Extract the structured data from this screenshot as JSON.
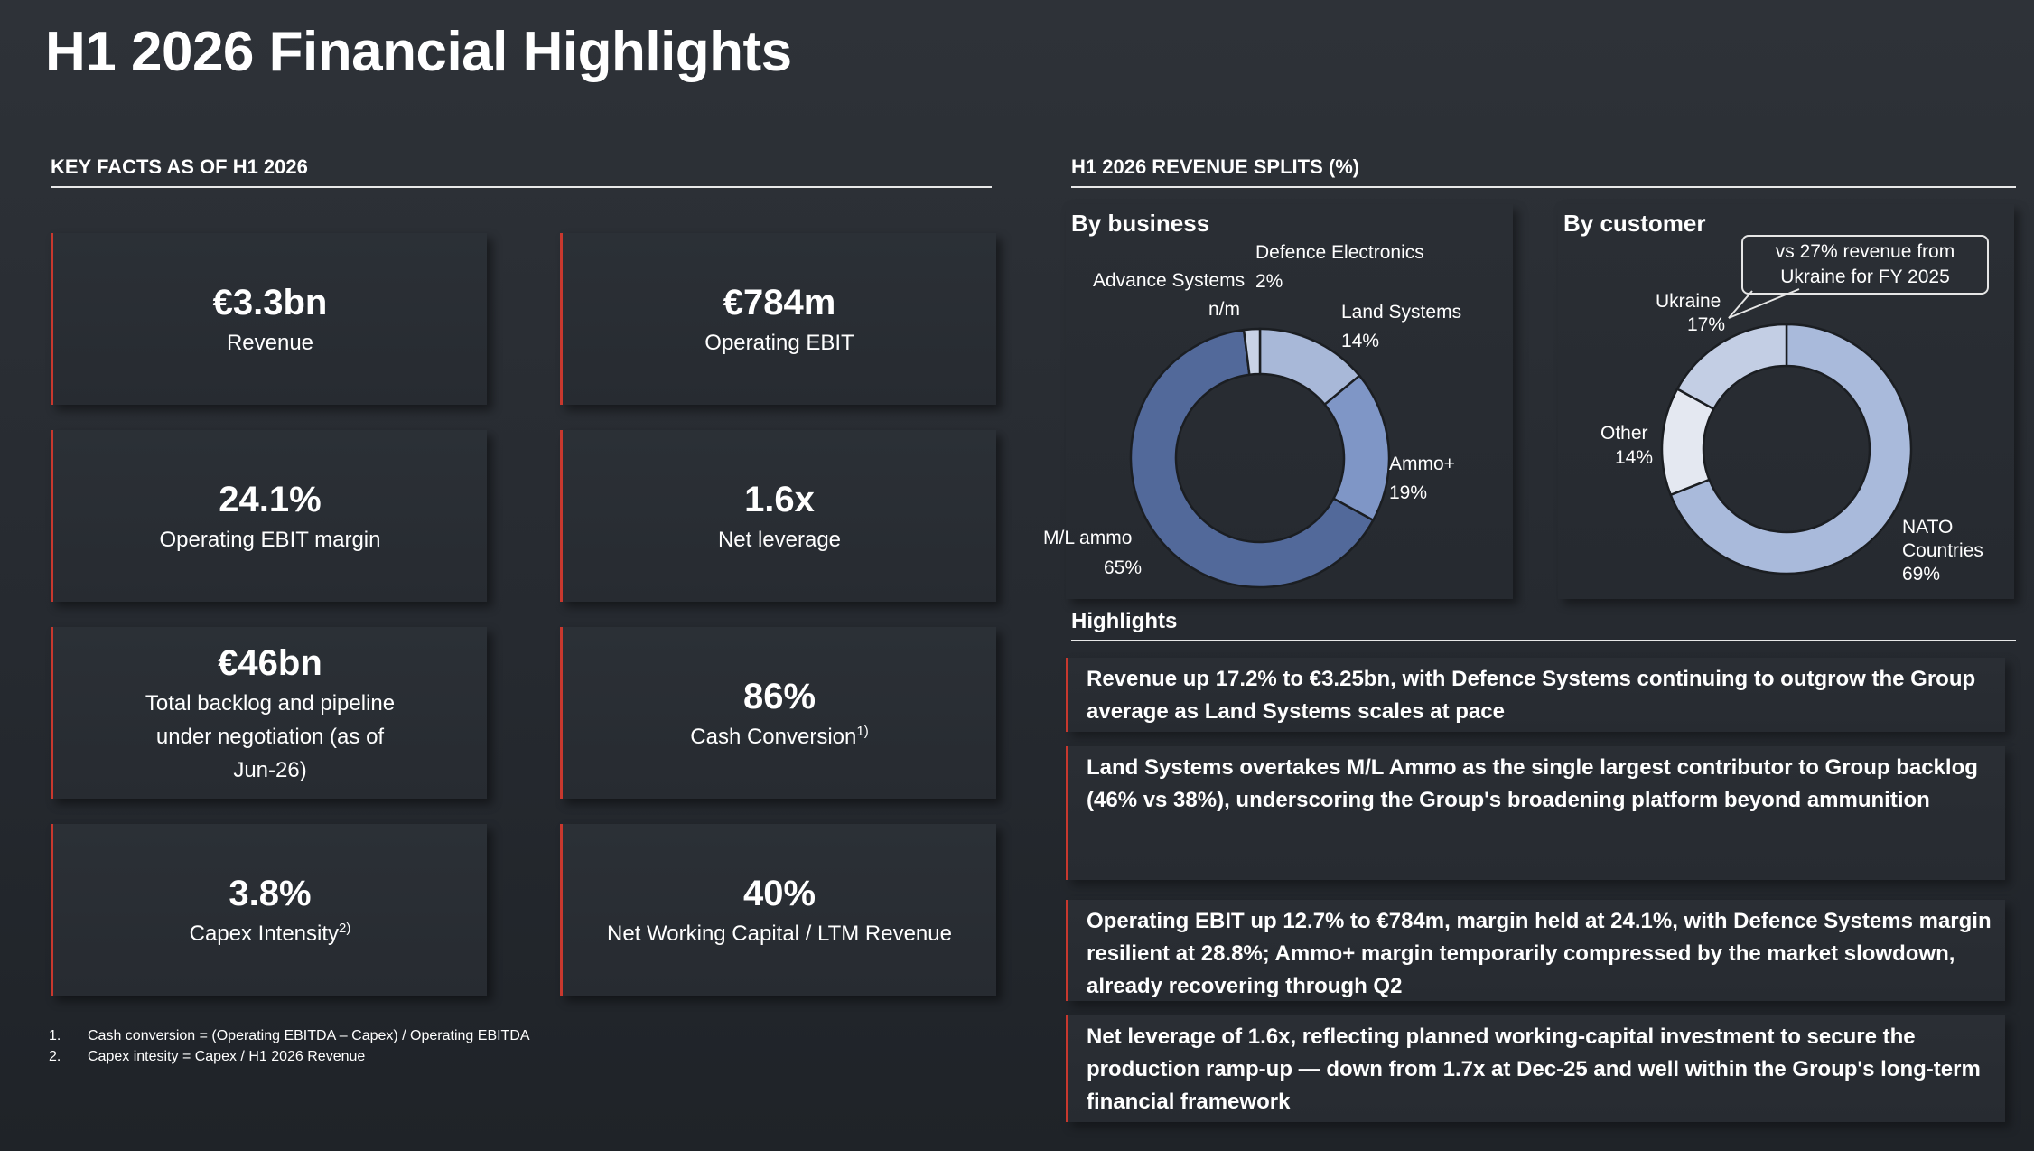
{
  "page": {
    "title": "H1 2026 Financial Highlights"
  },
  "key_facts": {
    "section_title": "KEY FACTS AS OF H1 2026",
    "cards": [
      {
        "value": "€3.3bn",
        "label": "Revenue"
      },
      {
        "value": "€784m",
        "label": "Operating EBIT"
      },
      {
        "value": "24.1%",
        "label": "Operating EBIT margin"
      },
      {
        "value": "1.6x",
        "label": "Net leverage"
      },
      {
        "value": "€46bn",
        "label": "Total backlog and pipeline under negotiation (as of Jun-26)"
      },
      {
        "value": "86%",
        "label": "Cash Conversion",
        "note": "1)"
      },
      {
        "value": "3.8%",
        "label": "Capex Intensity",
        "note": "2)"
      },
      {
        "value": "40%",
        "label": "Net Working Capital / LTM Revenue"
      }
    ],
    "footnotes": [
      {
        "num": "1.",
        "text": "Cash conversion = (Operating EBITDA – Capex) / Operating EBITDA"
      },
      {
        "num": "2.",
        "text": "Capex intesity = Capex / H1 2026 Revenue"
      }
    ]
  },
  "revenue_splits": {
    "section_title": "H1 2026 REVENUE SPLITS (%)",
    "by_business": {
      "title": "By business",
      "labels": {
        "defence_electronics": {
          "name": "Defence Electronics",
          "pct": "2%"
        },
        "advance_systems": {
          "name": "Advance Systems",
          "pct": "n/m"
        },
        "land_systems": {
          "name": "Land Systems",
          "pct": "14%"
        },
        "ammo_plus": {
          "name": "Ammo+",
          "pct": "19%"
        },
        "ml_ammo": {
          "name": "M/L ammo",
          "pct": "65%"
        }
      }
    },
    "by_customer": {
      "title": "By customer",
      "labels": {
        "ukraine": {
          "name": "Ukraine",
          "pct": "17%"
        },
        "other": {
          "name": "Other",
          "pct": "14%"
        },
        "nato_line1": "NATO",
        "nato_line2": "Countries",
        "nato_pct": "69%"
      },
      "callout": {
        "line1": "vs 27% revenue from",
        "line2": "Ukraine for FY 2025"
      }
    }
  },
  "chart_data": [
    {
      "type": "pie",
      "title": "By business",
      "categories": [
        "Land Systems",
        "Ammo+",
        "M/L ammo",
        "Advance Systems",
        "Defence Electronics"
      ],
      "values": [
        14,
        19,
        65,
        0,
        2
      ],
      "value_labels": [
        "14%",
        "19%",
        "65%",
        "n/m",
        "2%"
      ],
      "donut": true,
      "colors": [
        "#a8b8d8",
        "#7f96c6",
        "#52699a",
        "#52699a",
        "#c9d3e6"
      ]
    },
    {
      "type": "pie",
      "title": "By customer",
      "categories": [
        "NATO Countries",
        "Other",
        "Ukraine"
      ],
      "values": [
        69,
        14,
        17
      ],
      "value_labels": [
        "69%",
        "14%",
        "17%"
      ],
      "donut": true,
      "colors": [
        "#a9badb",
        "#e4e8f1",
        "#c3cee4"
      ]
    }
  ],
  "highlights": {
    "section_title": "Highlights",
    "items": [
      {
        "text": "Revenue up 17.2% to €3.25bn, with Defence Systems continuing to outgrow the Group average as Land Systems scales at pace"
      },
      {
        "text": "Land Systems overtakes M/L Ammo as the single largest contributor to Group backlog (46% vs 38%), underscoring the Group's broadening platform beyond ammunition"
      },
      {
        "text": "Operating EBIT up 12.7% to €784m, margin held at 24.1%, with Defence Systems margin resilient at 28.8%; Ammo+ margin temporarily compressed by the market slowdown, already recovering through Q2"
      },
      {
        "text": "Net leverage of 1.6x, reflecting planned working-capital investment to secure the production ramp-up — down from 1.7x at Dec-25 and well within the Group's long-term financial framework"
      }
    ]
  }
}
